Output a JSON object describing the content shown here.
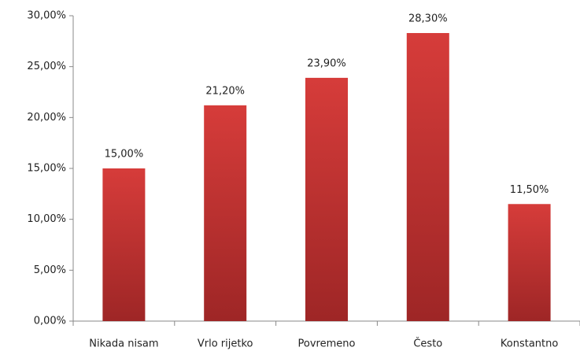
{
  "chart_data": {
    "type": "bar",
    "categories": [
      "Nikada nisam",
      "Vrlo rijetko",
      "Povremeno",
      "Često",
      "Konstantno"
    ],
    "values": [
      15,
      21.2,
      23.9,
      28.3,
      11.5
    ],
    "value_labels": [
      "15,00%",
      "21,20%",
      "23,90%",
      "28,30%",
      "11,50%"
    ],
    "color": "#d63c3a",
    "ylim": [
      0,
      30
    ],
    "yticks": [
      {
        "value": 0,
        "label": "0,00%"
      },
      {
        "value": 5,
        "label": "5,00%"
      },
      {
        "value": 10,
        "label": "10,00%"
      },
      {
        "value": 15,
        "label": "15,00%"
      },
      {
        "value": 20,
        "label": "20,00%"
      },
      {
        "value": 25,
        "label": "25,00%"
      },
      {
        "value": 30,
        "label": "30,00%"
      }
    ],
    "grid": false
  }
}
